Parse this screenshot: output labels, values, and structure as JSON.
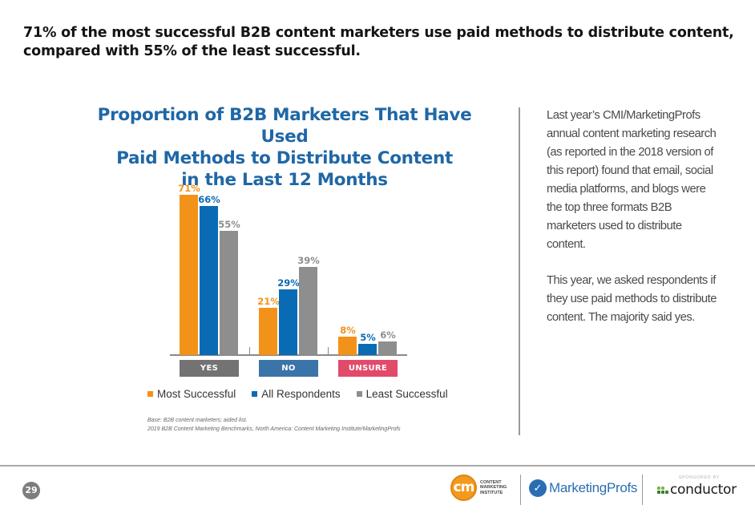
{
  "headline": {
    "line1": "71% of the most successful B2B content marketers use paid methods to distribute content,",
    "line2": "compared with 55% of the least successful."
  },
  "chart_data": {
    "type": "bar",
    "title": "Proportion of B2B Marketers That Have Used Paid Methods to Distribute Content in the Last 12 Months",
    "title_lines": [
      "Proportion of B2B Marketers That Have Used",
      "Paid Methods to Distribute Content",
      "in the Last 12 Months"
    ],
    "categories": [
      "YES",
      "NO",
      "UNSURE"
    ],
    "category_colors": [
      "#737373",
      "#3b74a8",
      "#e24a6a"
    ],
    "series": [
      {
        "name": "Most Successful",
        "color": "#f39219",
        "values": [
          71,
          21,
          8
        ],
        "labels": [
          "71%",
          "21%",
          "8%"
        ]
      },
      {
        "name": "All Respondents",
        "color": "#0a6bb5",
        "values": [
          66,
          29,
          5
        ],
        "labels": [
          "66%",
          "29%",
          "5%"
        ]
      },
      {
        "name": "Least Successful",
        "color": "#8e8e8e",
        "values": [
          55,
          39,
          6
        ],
        "labels": [
          "55%",
          "39%",
          "6%"
        ]
      }
    ],
    "xlabel": "",
    "ylabel": "",
    "ylim": [
      0,
      71
    ],
    "grid": false,
    "legend_position": "bottom",
    "unit": "%"
  },
  "legend": [
    {
      "label": "Most Successful",
      "color": "#f39219"
    },
    {
      "label": "All Respondents",
      "color": "#0a6bb5"
    },
    {
      "label": "Least Successful",
      "color": "#8e8e8e"
    }
  ],
  "source": {
    "base": "Base: B2B content marketers; aided list.",
    "citation": "2019 B2B Content Marketing Benchmarks, North America: Content Marketing Institute/MarketingProfs"
  },
  "sidebar": {
    "paragraph1": "Last year’s CMI/MarketingProfs annual content marketing research (as reported in the 2018 version of this report) found that email, social media platforms, and blogs were the top three formats B2B marketers used to distribute content.",
    "paragraph2": "This year, we asked respondents if they use paid methods to distribute content. The majority said yes."
  },
  "footer": {
    "page_number": "29",
    "cmi_logo_mark": "cm",
    "cmi_logo_text": "CONTENT MARKETING INSTITUTE",
    "mp_logo_text": "MarketingProfs",
    "sponsored_label": "SPONSORED BY",
    "conductor_logo_text": "conductor"
  }
}
